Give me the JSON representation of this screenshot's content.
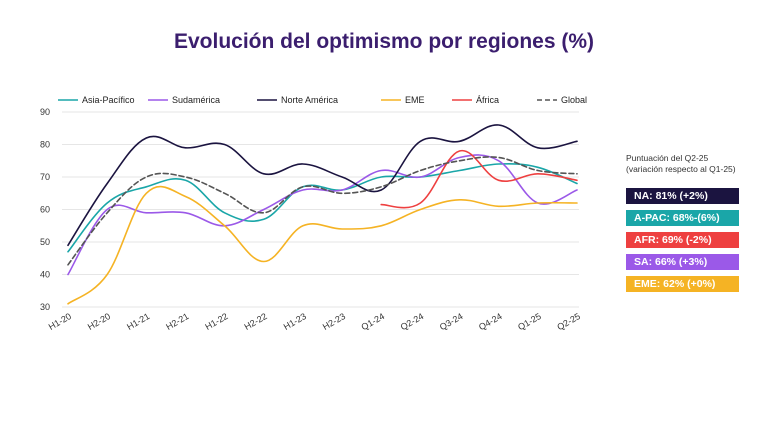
{
  "chart_data": {
    "type": "line",
    "title": "Evolución del optimismo por regiones (%)",
    "categories": [
      "H1-20",
      "H2-20",
      "H1-21",
      "H2-21",
      "H1-22",
      "H2-22",
      "H1-23",
      "H2-23",
      "Q1-24",
      "Q2-24",
      "Q3-24",
      "Q4-24",
      "Q1-25",
      "Q2-25"
    ],
    "ylim": [
      30,
      90
    ],
    "yticks": [
      30,
      40,
      50,
      60,
      70,
      80,
      90
    ],
    "legend_position": "top",
    "series": [
      {
        "name": "Asia-Pacífico",
        "color": "#1aa6a8",
        "dashed": false,
        "values": [
          47,
          62,
          67,
          69,
          59,
          57,
          67,
          66,
          70,
          70,
          72,
          74,
          73,
          68
        ]
      },
      {
        "name": "Sudamérica",
        "color": "#9b59e8",
        "dashed": false,
        "values": [
          40,
          60,
          59,
          59,
          55,
          60,
          66,
          66,
          72,
          70,
          76,
          75,
          62,
          66
        ]
      },
      {
        "name": "Norte América",
        "color": "#1b1440",
        "dashed": false,
        "values": [
          49,
          68,
          82,
          79,
          80,
          71,
          74,
          70,
          66,
          81,
          81,
          86,
          79,
          81
        ]
      },
      {
        "name": "EME",
        "color": "#f5b324",
        "dashed": false,
        "values": [
          31,
          40,
          65,
          64,
          55,
          44,
          55,
          54,
          55,
          60,
          63,
          61,
          62,
          62
        ]
      },
      {
        "name": "África",
        "color": "#ee4040",
        "dashed": false,
        "values": [
          null,
          null,
          null,
          null,
          null,
          null,
          null,
          null,
          61.5,
          62,
          78,
          69,
          71,
          69
        ]
      },
      {
        "name": "Global",
        "color": "#555555",
        "dashed": true,
        "values": [
          43,
          59,
          70,
          70,
          65,
          59,
          67,
          65,
          67,
          72,
          75,
          76,
          72,
          71
        ]
      }
    ]
  },
  "side_panel": {
    "title_line1": "Puntuación del Q2-25",
    "title_line2": "(variación respecto al Q1-25)",
    "boxes": [
      {
        "text": "NA: 81% (+2%)",
        "color": "#1b1440"
      },
      {
        "text": "A-PAC: 68%-(6%)",
        "color": "#1aa6a8"
      },
      {
        "text": "AFR: 69% (-2%)",
        "color": "#ee4040"
      },
      {
        "text": "SA: 66% (+3%)",
        "color": "#9b59e8"
      },
      {
        "text": "EME: 62% (+0%)",
        "color": "#f5b324"
      }
    ]
  }
}
